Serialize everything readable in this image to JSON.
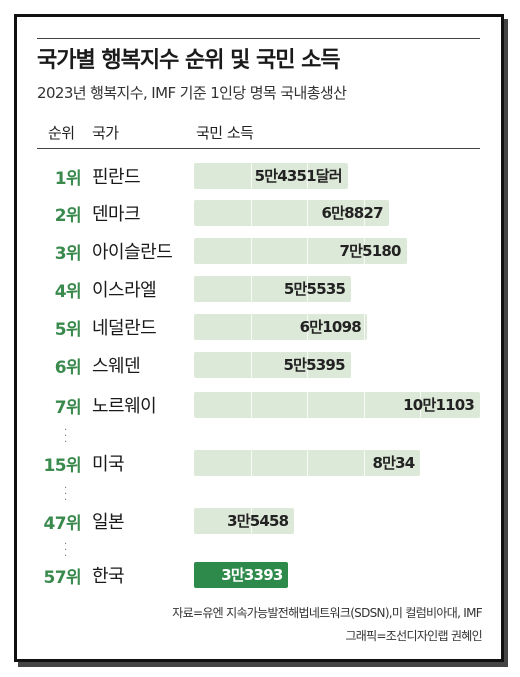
{
  "title": "국가별 행복지수 순위 및 국민 소득",
  "subtitle": "2023년 행복지수, IMF 기준 1인당 명목 국내총생산",
  "headers": {
    "rank": "순위",
    "country": "국가",
    "income": "국민 소득"
  },
  "colors": {
    "bar": "#dde9d8",
    "highlight_bar": "#2e8a4b",
    "rank_text": "#3a8a4e"
  },
  "chart_data": {
    "type": "bar",
    "orientation": "horizontal",
    "ranks": [
      "1위",
      "2위",
      "3위",
      "4위",
      "5위",
      "6위",
      "7위",
      "15위",
      "47위",
      "57위"
    ],
    "categories": [
      "핀란드",
      "덴마크",
      "아이슬란드",
      "이스라엘",
      "네덜란드",
      "스웨덴",
      "노르웨이",
      "미국",
      "일본",
      "한국"
    ],
    "values": [
      54351,
      68827,
      75180,
      55535,
      61098,
      55395,
      101103,
      80034,
      35458,
      33393
    ],
    "value_labels": [
      "5만4351달러",
      "6만8827",
      "7만5180",
      "5만5535",
      "6만1098",
      "5만5395",
      "10만1103",
      "8만34",
      "3만5458",
      "3만3393"
    ],
    "highlight": "한국",
    "gaps_after": [
      "노르웨이",
      "미국",
      "일본"
    ],
    "gridlines": [
      20000,
      40000,
      60000,
      80000
    ],
    "units": "달러"
  },
  "source_line1": "자료=유엔 지속가능발전해법네트워크(SDSN),미 컬럼비아대, IMF",
  "source_line2": "그래픽=조선디자인랩 권혜인"
}
